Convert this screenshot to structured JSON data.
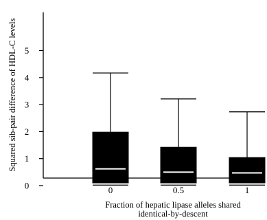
{
  "chart_data": {
    "type": "boxplot",
    "title": "",
    "xlabel_lines": [
      "Fraction of hepatic lipase alleles shared",
      "identical-by-descent"
    ],
    "ylabel": "Squared sib-pair difference of HDL-C levels",
    "categories": [
      "0",
      "0.5",
      "1"
    ],
    "y_ticks": [
      "0",
      "1",
      "2",
      "3",
      "4",
      "5"
    ],
    "ylim": [
      0,
      5.3
    ],
    "boxes": [
      {
        "category": "0",
        "min": 0.02,
        "q1": 0.1,
        "median": 0.62,
        "q3": 1.98,
        "max": 4.17
      },
      {
        "category": "0.5",
        "min": 0.02,
        "q1": 0.1,
        "median": 0.5,
        "q3": 1.42,
        "max": 3.21
      },
      {
        "category": "1",
        "min": 0.02,
        "q1": 0.1,
        "median": 0.47,
        "q3": 1.04,
        "max": 2.73
      }
    ],
    "box_color": "#000000",
    "median_color": "#ffffff",
    "grid": false,
    "legend": "none"
  }
}
